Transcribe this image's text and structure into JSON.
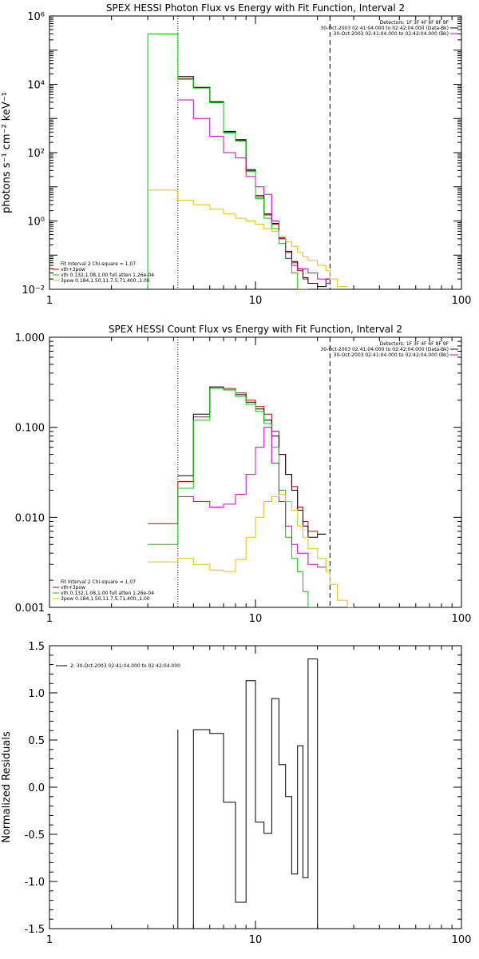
{
  "chart_data": [
    {
      "type": "line",
      "title": "SPEX HESSI Photon Flux vs Energy with Fit Function, Interval 2",
      "xlabel": "",
      "ylabel": "photons s⁻¹ cm⁻² keV⁻¹",
      "xscale": "log",
      "yscale": "log",
      "xlim": [
        1,
        100
      ],
      "ylim": [
        0.01,
        1000000
      ],
      "xticks": [
        1,
        10,
        100
      ],
      "xtick_labels": [
        "1",
        "10",
        "100"
      ],
      "yticks": [
        0.01,
        1,
        100,
        10000,
        1000000
      ],
      "ytick_labels": [
        "10⁻²",
        "10⁰",
        "10²",
        "10⁴",
        "10⁶"
      ],
      "vlines": [
        {
          "x": 4.2,
          "style": "dotted"
        },
        {
          "x": 23,
          "style": "dashed"
        }
      ],
      "legend_top_right": [
        "Detectors: 1F 3F 4F 6F 8F 9F",
        "30-Oct-2003 02:41:04.000 to 02:42:04.000 (Data-Bk)",
        "30-Oct-2003 02:41:04.000 to 02:42:04.000 (Bk)"
      ],
      "legend_bottom_left": [
        "Fit Interval 2    Chi-square = 1.07",
        "vth+3pow",
        "vth 0.132,1.08,1.00  full  atten 1.26e-04",
        "3pow 0.184,1.50,11.7,5.71,400.,1.00"
      ],
      "legend_colors": [
        "#cc0000",
        "#00cc00",
        "#e8c000"
      ],
      "bin_edges": [
        3.0,
        4.2,
        5.0,
        6.0,
        7.0,
        8.0,
        9.0,
        10.0,
        11.0,
        12.0,
        13.0,
        14.0,
        15.0,
        16.0,
        17.0,
        18.0,
        20.0,
        22.0,
        23.0,
        25.0,
        28.0
      ],
      "series": [
        {
          "name": "vth+3pow",
          "color": "#cc0000",
          "values": [
            null,
            15000,
            8000,
            3000,
            400,
            230,
            30,
            5,
            1.5,
            0.8,
            0.3,
            0.12,
            0.06,
            0.035,
            0.02,
            null,
            null,
            null,
            null,
            null
          ]
        },
        {
          "color": "#000000",
          "values": [
            null,
            17000,
            8200,
            3100,
            420,
            240,
            32,
            5.5,
            1.6,
            0.85,
            0.32,
            0.13,
            0.065,
            0.04,
            0.022,
            0.015,
            0.012,
            0.02,
            null,
            null
          ]
        },
        {
          "name": "vth",
          "color": "#00cc00",
          "values": [
            300000,
            14000,
            7800,
            2900,
            380,
            220,
            28,
            4.5,
            1.2,
            0.6,
            0.22,
            0.08,
            0.03,
            0.01,
            0.01,
            null,
            null,
            null,
            null,
            null
          ]
        },
        {
          "color": "#cc00cc",
          "values": [
            null,
            3500,
            1000,
            300,
            100,
            70,
            20,
            10,
            6,
            1,
            0.3,
            0.08,
            0.05,
            0.04,
            0.04,
            0.03,
            0.02,
            0.015,
            null,
            null
          ]
        },
        {
          "name": "3pow",
          "color": "#e8c000",
          "values": [
            8,
            4,
            3,
            2.2,
            1.6,
            1.2,
            1,
            0.8,
            0.6,
            0.5,
            0.35,
            0.25,
            0.18,
            0.12,
            0.09,
            0.07,
            0.05,
            0.035,
            0.02,
            0.012
          ]
        }
      ]
    },
    {
      "type": "line",
      "title": "SPEX HESSI Count Flux vs Energy with Fit Function, Interval 2",
      "xlabel": "",
      "ylabel": "",
      "xscale": "log",
      "yscale": "log",
      "xlim": [
        1,
        100
      ],
      "ylim": [
        0.001,
        1
      ],
      "xticks": [
        1,
        10,
        100
      ],
      "xtick_labels": [
        "1",
        "10",
        "100"
      ],
      "yticks": [
        0.001,
        0.01,
        0.1,
        1
      ],
      "ytick_labels": [
        "0.001",
        "0.010",
        "0.100",
        "1.000"
      ],
      "vlines": [
        {
          "x": 4.2,
          "style": "dotted"
        },
        {
          "x": 23,
          "style": "dashed"
        }
      ],
      "legend_top_right": [
        "Detectors: 1F 3F 4F 6F 8F 9F",
        "30-Oct-2003 02:41:04.000 to 02:42:04.000 (Data-Bk)",
        "30-Oct-2003 02:41:04.000 to 02:42:04.000 (Bk)"
      ],
      "legend_bottom_left": [
        "Fit Interval 2    Chi-square = 1.07",
        "vth+3pow",
        "vth 0.132,1.08,1.00  full  atten 1.26e-04",
        "3pow 0.184,1.50,11.7,5.71,400.,1.00"
      ],
      "legend_colors": [
        "#cc0000",
        "#00cc00",
        "#e8c000"
      ],
      "bin_edges": [
        3.0,
        4.2,
        5.0,
        6.0,
        7.0,
        8.0,
        9.0,
        10.0,
        11.0,
        12.0,
        13.0,
        14.0,
        15.0,
        16.0,
        17.0,
        18.0,
        20.0,
        22.0,
        23.0,
        25.0,
        28.0,
        30.0
      ],
      "series": [
        {
          "name": "vth+3pow",
          "color": "#cc0000",
          "values": [
            0.0085,
            0.025,
            0.13,
            0.28,
            0.27,
            0.24,
            0.2,
            0.17,
            0.14,
            0.09,
            0.05,
            0.03,
            0.022,
            0.013,
            0.009,
            0.007,
            0.0065,
            null,
            null,
            null,
            null
          ]
        },
        {
          "color": "#000000",
          "values": [
            null,
            0.029,
            0.14,
            0.28,
            0.26,
            0.23,
            0.19,
            0.16,
            0.12,
            0.08,
            0.05,
            0.03,
            0.02,
            0.012,
            0.008,
            0.006,
            0.0065,
            null,
            null,
            null,
            null
          ]
        },
        {
          "name": "vth",
          "color": "#00cc00",
          "values": [
            0.005,
            0.021,
            0.12,
            0.27,
            0.26,
            0.22,
            0.18,
            0.15,
            0.11,
            0.06,
            0.02,
            0.006,
            0.0035,
            0.0025,
            0.0015,
            0.001,
            null,
            null,
            null,
            null,
            null
          ]
        },
        {
          "color": "#cc00cc",
          "values": [
            null,
            0.017,
            0.015,
            0.013,
            0.014,
            0.018,
            0.03,
            0.06,
            0.1,
            0.04,
            0.015,
            0.008,
            0.005,
            0.004,
            0.004,
            0.003,
            0.0028,
            null,
            null,
            null,
            null
          ]
        },
        {
          "name": "3pow",
          "color": "#e8c000",
          "values": [
            0.0032,
            0.0035,
            0.003,
            0.0026,
            0.0025,
            0.0034,
            0.006,
            0.01,
            0.015,
            0.017,
            0.018,
            0.015,
            0.012,
            0.008,
            0.006,
            0.0045,
            0.0035,
            0.0025,
            0.0018,
            0.0012,
            0.001
          ]
        }
      ]
    },
    {
      "type": "line",
      "title": "",
      "xlabel": "",
      "ylabel": "Normalized Residuals",
      "xscale": "log",
      "xlim": [
        1,
        100
      ],
      "ylim": [
        -1.5,
        1.5
      ],
      "xticks": [
        1,
        10,
        100
      ],
      "xtick_labels": [
        "1",
        "10",
        "100"
      ],
      "yticks": [
        -1.5,
        -1.0,
        -0.5,
        0.0,
        0.5,
        1.0,
        1.5
      ],
      "ytick_labels": [
        "-1.5",
        "-1.0",
        "-0.5",
        "0.0",
        "0.5",
        "1.0",
        "1.5"
      ],
      "legend": "2: 30-Oct-2003 02:41:04.000 to 02:42:04.000",
      "bin_edges": [
        4.2,
        5.0,
        6.0,
        7.0,
        8.0,
        9.0,
        10.0,
        11.0,
        12.0,
        13.0,
        14.0,
        15.0,
        16.0,
        17.0,
        18.0,
        20.0,
        22.0,
        23.0
      ],
      "series": [
        {
          "color": "#000000",
          "values": [
            -1.6,
            0.61,
            0.57,
            -0.16,
            -1.22,
            1.13,
            -0.37,
            -0.49,
            0.94,
            0.24,
            -0.1,
            -0.92,
            0.44,
            -0.96,
            1.36,
            -1.6,
            -1.6
          ]
        }
      ]
    }
  ]
}
